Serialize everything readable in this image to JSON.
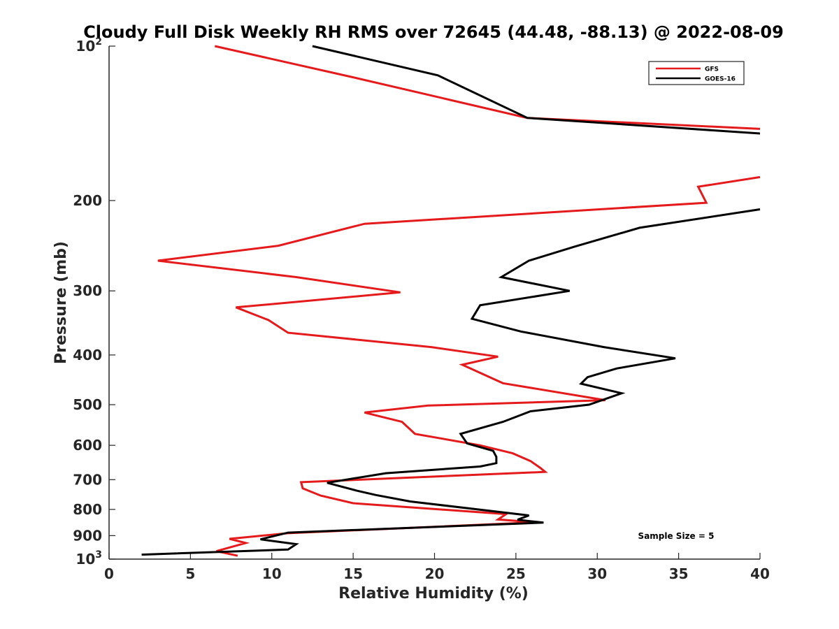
{
  "chart_data": {
    "type": "line",
    "title": "Cloudy Full Disk Weekly RH RMS over 72645 (44.48, -88.13) @ 2022-08-09",
    "xlabel": "Relative Humidity (%)",
    "ylabel": "Pressure (mb)",
    "xlim": [
      0,
      40
    ],
    "ylim": [
      100,
      1000
    ],
    "yscale": "log",
    "y_reversed": true,
    "xticks": [
      0,
      5,
      10,
      15,
      20,
      25,
      30,
      35,
      40
    ],
    "yticks": [
      {
        "value": 100,
        "label": "10",
        "sup": "2"
      },
      {
        "value": 200,
        "label": "200"
      },
      {
        "value": 300,
        "label": "300"
      },
      {
        "value": 400,
        "label": "400"
      },
      {
        "value": 500,
        "label": "500"
      },
      {
        "value": 600,
        "label": "600"
      },
      {
        "value": 700,
        "label": "700"
      },
      {
        "value": 800,
        "label": "800"
      },
      {
        "value": 900,
        "label": "900"
      },
      {
        "value": 1000,
        "label": "10",
        "sup": "3"
      }
    ],
    "grid": false,
    "legend_position": "top-right",
    "annotation": "Sample Size = 5",
    "series": [
      {
        "name": "GFS",
        "color": "#e41a1c",
        "points": [
          [
            6.5,
            100
          ],
          [
            15,
            115
          ],
          [
            25.7,
            138
          ],
          [
            40,
            145
          ],
          [
            null,
            null
          ],
          [
            40,
            180
          ],
          [
            36.2,
            188
          ],
          [
            36.7,
            202
          ],
          [
            15.7,
            222
          ],
          [
            10.4,
            245
          ],
          [
            3.0,
            262
          ],
          [
            11.5,
            282
          ],
          [
            17.9,
            302
          ],
          [
            7.8,
            323
          ],
          [
            9.8,
            342
          ],
          [
            11.0,
            362
          ],
          [
            19.8,
            386
          ],
          [
            23.9,
            403
          ],
          [
            21.7,
            418
          ],
          [
            22.7,
            432
          ],
          [
            24.2,
            454
          ],
          [
            30.5,
            490
          ],
          [
            19.6,
            502
          ],
          [
            15.7,
            518
          ],
          [
            18.0,
            540
          ],
          [
            18.8,
            570
          ],
          [
            22.8,
            600
          ],
          [
            24.8,
            622
          ],
          [
            25.9,
            644
          ],
          [
            26.5,
            664
          ],
          [
            26.8,
            676
          ],
          [
            11.8,
            708
          ],
          [
            11.9,
            728
          ],
          [
            13.0,
            752
          ],
          [
            15.0,
            778
          ],
          [
            24.4,
            817
          ],
          [
            23.9,
            837
          ],
          [
            26.2,
            848
          ],
          [
            11.0,
            890
          ],
          [
            7.4,
            913
          ],
          [
            8.4,
            930
          ],
          [
            6.6,
            965
          ],
          [
            7.9,
            985
          ]
        ]
      },
      {
        "name": "GOES-16",
        "color": "#000000",
        "points": [
          [
            12.5,
            100
          ],
          [
            20.2,
            114
          ],
          [
            25.7,
            138
          ],
          [
            40,
            148
          ],
          [
            null,
            null
          ],
          [
            40,
            208
          ],
          [
            32.6,
            226
          ],
          [
            28.6,
            246
          ],
          [
            25.8,
            262
          ],
          [
            24.1,
            282
          ],
          [
            28.3,
            300
          ],
          [
            22.8,
            320
          ],
          [
            22.3,
            340
          ],
          [
            25.3,
            360
          ],
          [
            30.4,
            386
          ],
          [
            34.8,
            406
          ],
          [
            31.2,
            425
          ],
          [
            29.4,
            442
          ],
          [
            29.0,
            455
          ],
          [
            31.5,
            475
          ],
          [
            29.5,
            500
          ],
          [
            25.9,
            515
          ],
          [
            24.2,
            540
          ],
          [
            21.6,
            570
          ],
          [
            22.0,
            595
          ],
          [
            23.6,
            615
          ],
          [
            23.8,
            632
          ],
          [
            23.8,
            650
          ],
          [
            22.8,
            660
          ],
          [
            17.0,
            680
          ],
          [
            13.4,
            710
          ],
          [
            15.2,
            735
          ],
          [
            16.4,
            750
          ],
          [
            18.5,
            772
          ],
          [
            25.8,
            822
          ],
          [
            25.1,
            838
          ],
          [
            26.7,
            849
          ],
          [
            11.0,
            888
          ],
          [
            9.3,
            915
          ],
          [
            11.5,
            935
          ],
          [
            11.0,
            958
          ],
          [
            2.0,
            980
          ]
        ]
      }
    ]
  }
}
